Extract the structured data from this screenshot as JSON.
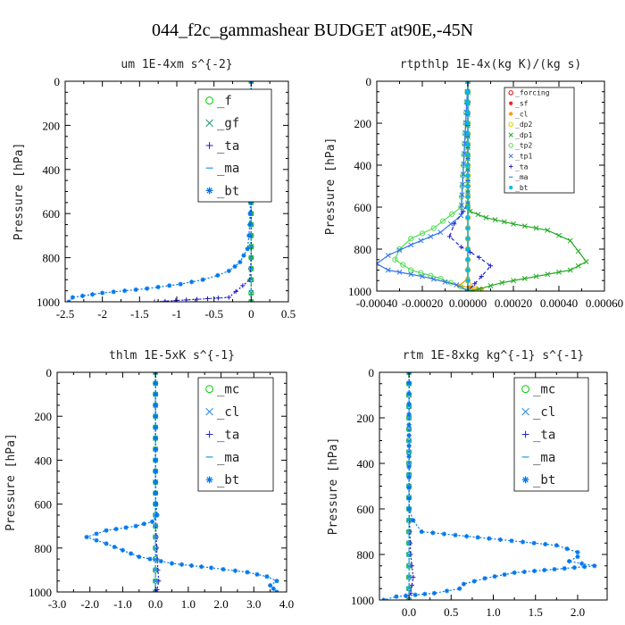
{
  "figure_title": "044_f2c_gammashear  BUDGET at90E,-45N",
  "chart_data": [
    {
      "type": "line",
      "title": "um  1E-4xm s^{-2}",
      "ylabel": "Pressure [hPa]",
      "xlabel": "",
      "xlim": [
        -2.5,
        0.5
      ],
      "ylim": [
        1000,
        0
      ],
      "xticks": [
        -2.5,
        -2.0,
        -1.5,
        -1.0,
        -0.5,
        0.0,
        0.5
      ],
      "xtick_labels": [
        "-2.5",
        "-2",
        "-1.5",
        "-1",
        "-0.5",
        "0",
        "0.5"
      ],
      "yticks": [
        0,
        200,
        400,
        600,
        800,
        1000
      ],
      "ytick_labels": [
        "0",
        "200",
        "400",
        "600",
        "800",
        "1000"
      ],
      "legend_position": "top-right",
      "series": [
        {
          "name": "_f",
          "color": "#00cc00",
          "marker": "o",
          "dash": "dotted",
          "x": [
            0,
            0,
            0,
            0,
            0,
            0,
            0,
            0,
            0,
            0,
            0,
            0
          ],
          "y": [
            0,
            100,
            200,
            300,
            400,
            500,
            600,
            700,
            800,
            900,
            960,
            1000
          ]
        },
        {
          "name": "_gf",
          "color": "#1a9a6a",
          "marker": "x",
          "dash": "dotted",
          "x": [
            0,
            0,
            0,
            0,
            0,
            0,
            0,
            0,
            0,
            0,
            0,
            0
          ],
          "y": [
            0,
            100,
            200,
            300,
            400,
            500,
            600,
            700,
            800,
            900,
            960,
            1000
          ]
        },
        {
          "name": "_ta",
          "color": "#1a1acc",
          "marker": "+",
          "dash": "dotted",
          "x": [
            0,
            0,
            0,
            0,
            0,
            0,
            -0.02,
            -0.3,
            -1.3
          ],
          "y": [
            0,
            200,
            400,
            600,
            700,
            800,
            900,
            980,
            1000
          ]
        },
        {
          "name": "_ma",
          "color": "#2299dd",
          "marker": "-",
          "dash": "dashed",
          "x": [
            0,
            0,
            0,
            0,
            0,
            0
          ],
          "y": [
            0,
            200,
            400,
            600,
            800,
            1000
          ]
        },
        {
          "name": "_bt",
          "color": "#0077ee",
          "marker": "*",
          "dash": "dotted",
          "x": [
            0,
            -0.01,
            -0.02,
            -0.03,
            -0.05,
            -0.1,
            -0.15,
            -0.22,
            -0.3,
            -0.45,
            -0.65,
            -0.95,
            -1.4,
            -2.0,
            -2.4,
            -2.45
          ],
          "y": [
            0,
            550,
            650,
            700,
            760,
            790,
            820,
            840,
            860,
            880,
            900,
            920,
            940,
            960,
            980,
            1000
          ]
        }
      ]
    },
    {
      "type": "line",
      "title": "rtpthlp  1E-4x(kg K)/(kg s)",
      "ylabel": "Pressure [hPa]",
      "xlabel": "",
      "xlim": [
        -0.0004,
        0.0006
      ],
      "ylim": [
        1000,
        0
      ],
      "xticks": [
        -0.0004,
        -0.0002,
        0.0,
        0.0002,
        0.0004,
        0.0006
      ],
      "xtick_labels": [
        "-0.00040",
        "-0.00020",
        "0.00000",
        "0.00020",
        "0.00040",
        "0.00060"
      ],
      "yticks": [
        0,
        200,
        400,
        600,
        800,
        1000
      ],
      "ytick_labels": [
        "0",
        "200",
        "400",
        "600",
        "800",
        "1000"
      ],
      "legend_position": "top-right",
      "series": [
        {
          "name": "_forcing",
          "color": "#dd0000",
          "marker": "o",
          "dash": "solid",
          "x": [
            0,
            0,
            0,
            0,
            0,
            0,
            0,
            0,
            0,
            0,
            0
          ],
          "y": [
            0,
            100,
            200,
            300,
            400,
            500,
            600,
            700,
            800,
            900,
            1000
          ]
        },
        {
          "name": "_sf",
          "color": "#ee2222",
          "marker": "*",
          "dash": "solid",
          "x": [
            0,
            0,
            0,
            0,
            0,
            0,
            0,
            0,
            0,
            0,
            0
          ],
          "y": [
            0,
            100,
            200,
            300,
            400,
            500,
            600,
            700,
            800,
            900,
            1000
          ]
        },
        {
          "name": "_cl",
          "color": "#ff9900",
          "marker": "*",
          "dash": "solid",
          "x": [
            0,
            0,
            0,
            0,
            -4e-05,
            6e-05,
            0
          ],
          "y": [
            0,
            400,
            800,
            940,
            975,
            990,
            1000
          ]
        },
        {
          "name": "_dp2",
          "color": "#ddcc00",
          "marker": "o",
          "dash": "solid",
          "x": [
            0,
            0,
            0,
            3e-05,
            0
          ],
          "y": [
            0,
            700,
            950,
            985,
            1000
          ]
        },
        {
          "name": "_dp1",
          "color": "#22aa22",
          "marker": "x",
          "dash": "solid",
          "x": [
            0,
            0,
            1e-05,
            8e-05,
            0.0002,
            0.00035,
            0.00045,
            0.00052,
            0.00045,
            0.0003,
            0.00015,
            5e-05,
            0
          ],
          "y": [
            0,
            580,
            620,
            650,
            680,
            710,
            760,
            860,
            900,
            930,
            960,
            990,
            1000
          ]
        },
        {
          "name": "_tp2",
          "color": "#55dd55",
          "marker": "o",
          "dash": "solid",
          "x": [
            0,
            -3e-05,
            -0.00015,
            -0.00025,
            -0.0003,
            -0.00032,
            -0.00025,
            -0.00012,
            -3e-05,
            0
          ],
          "y": [
            0,
            600,
            700,
            750,
            800,
            850,
            900,
            940,
            980,
            1000
          ]
        },
        {
          "name": "_tp1",
          "color": "#3377ee",
          "marker": "x",
          "dash": "solid",
          "x": [
            0,
            -3e-05,
            -0.00012,
            -0.00025,
            -0.00035,
            -0.0004,
            -0.00035,
            -0.0002,
            -5e-05,
            0
          ],
          "y": [
            0,
            640,
            720,
            780,
            830,
            870,
            900,
            930,
            970,
            1000
          ]
        },
        {
          "name": "_ta",
          "color": "#2222cc",
          "marker": "+",
          "dash": "dashed",
          "x": [
            0,
            0,
            -2e-05,
            -6e-05,
            -8e-05,
            -3e-05,
            5e-05,
            0.0001,
            6e-05,
            0
          ],
          "y": [
            0,
            580,
            620,
            680,
            740,
            790,
            840,
            880,
            930,
            1000
          ]
        },
        {
          "name": "_ma",
          "color": "#2299dd",
          "marker": "-",
          "dash": "solid",
          "x": [
            0,
            0,
            0
          ],
          "y": [
            0,
            500,
            1000
          ]
        },
        {
          "name": "_bt",
          "color": "#00bbee",
          "marker": "*",
          "dash": "solid",
          "x": [
            0,
            0,
            0
          ],
          "y": [
            0,
            500,
            1000
          ]
        }
      ]
    },
    {
      "type": "line",
      "title": "thlm  1E-5xK s^{-1}",
      "ylabel": "Pressure [hPa]",
      "xlabel": "",
      "xlim": [
        -3.0,
        4.0
      ],
      "ylim": [
        1000,
        0
      ],
      "xticks": [
        -3,
        -2,
        -1,
        0,
        1,
        2,
        3,
        4
      ],
      "xtick_labels": [
        "-3.0",
        "-2.0",
        "-1.0",
        "0.0",
        "1.0",
        "2.0",
        "3.0",
        "4.0"
      ],
      "yticks": [
        0,
        200,
        400,
        600,
        800,
        1000
      ],
      "ytick_labels": [
        "0",
        "200",
        "400",
        "600",
        "800",
        "1000"
      ],
      "legend_position": "top-right",
      "series": [
        {
          "name": "_mc",
          "color": "#00cc00",
          "marker": "o",
          "dash": "dotted",
          "x": [
            0,
            0,
            0,
            0,
            0,
            0,
            0,
            0,
            0,
            0,
            0
          ],
          "y": [
            0,
            100,
            200,
            300,
            400,
            500,
            600,
            700,
            800,
            900,
            1000
          ]
        },
        {
          "name": "_cl",
          "color": "#2288dd",
          "marker": "x",
          "dash": "dotted",
          "x": [
            0,
            0,
            0,
            0,
            0,
            0,
            0,
            0,
            0,
            0,
            0
          ],
          "y": [
            0,
            100,
            200,
            300,
            400,
            500,
            600,
            700,
            800,
            900,
            1000
          ]
        },
        {
          "name": "_ta",
          "color": "#2222cc",
          "marker": "+",
          "dash": "dotted",
          "x": [
            0,
            0,
            0.01,
            0.05,
            0.1,
            0.05,
            0
          ],
          "y": [
            0,
            400,
            700,
            850,
            950,
            990,
            1000
          ]
        },
        {
          "name": "_ma",
          "color": "#2299dd",
          "marker": "-",
          "dash": "dashed",
          "x": [
            0,
            0,
            0,
            0,
            0,
            0
          ],
          "y": [
            0,
            200,
            400,
            600,
            800,
            1000
          ]
        },
        {
          "name": "_bt",
          "color": "#0077ee",
          "marker": "*",
          "dash": "dotted",
          "x": [
            0,
            0,
            0.02,
            0.05,
            -0.1,
            -0.6,
            -1.5,
            -2.1,
            -1.5,
            -1.0,
            -0.5,
            0.5,
            1.7,
            2.8,
            3.4,
            3.7,
            3.5,
            3.6,
            3.7
          ],
          "y": [
            0,
            550,
            600,
            650,
            680,
            700,
            720,
            750,
            780,
            810,
            840,
            870,
            890,
            910,
            930,
            950,
            970,
            985,
            1000
          ]
        }
      ]
    },
    {
      "type": "line",
      "title": "rtm  1E-8xkg kg^{-1} s^{-1}",
      "ylabel": "Pressure [hPa]",
      "xlabel": "",
      "xlim": [
        -0.35,
        2.35
      ],
      "ylim": [
        1000,
        0
      ],
      "xticks": [
        0.0,
        0.5,
        1.0,
        1.5,
        2.0
      ],
      "xtick_labels": [
        "0.0",
        "0.5",
        "1.0",
        "1.5",
        "2.0"
      ],
      "yticks": [
        0,
        200,
        400,
        600,
        800,
        1000
      ],
      "ytick_labels": [
        "0",
        "200",
        "400",
        "600",
        "800",
        "1000"
      ],
      "legend_position": "top-right",
      "series": [
        {
          "name": "_mc",
          "color": "#00cc00",
          "marker": "o",
          "dash": "dotted",
          "x": [
            0,
            0,
            0,
            0,
            0,
            0,
            0,
            0,
            0,
            0,
            0
          ],
          "y": [
            0,
            100,
            200,
            300,
            400,
            500,
            600,
            700,
            800,
            900,
            1000
          ]
        },
        {
          "name": "_cl",
          "color": "#2288dd",
          "marker": "x",
          "dash": "dotted",
          "x": [
            0,
            0,
            0,
            0,
            0,
            0,
            0,
            0,
            0,
            0,
            0
          ],
          "y": [
            0,
            100,
            200,
            300,
            400,
            500,
            600,
            700,
            800,
            900,
            1000
          ]
        },
        {
          "name": "_ta",
          "color": "#2222cc",
          "marker": "+",
          "dash": "dotted",
          "x": [
            0,
            0,
            0.02,
            0.05,
            0.02,
            0
          ],
          "y": [
            0,
            600,
            800,
            900,
            970,
            1000
          ]
        },
        {
          "name": "_ma",
          "color": "#2299dd",
          "marker": "-",
          "dash": "dashed",
          "x": [
            0,
            0,
            0,
            0,
            0,
            0
          ],
          "y": [
            0,
            200,
            400,
            600,
            800,
            1000
          ]
        },
        {
          "name": "_bt",
          "color": "#0077ee",
          "marker": "*",
          "dash": "dotted",
          "x": [
            0,
            0,
            0.05,
            0.15,
            0.95,
            1.75,
            2.0,
            2.0,
            1.9,
            2.2,
            1.25,
            0.9,
            0.65,
            0.6,
            0.3,
            -0.15,
            -0.3
          ],
          "y": [
            0,
            600,
            650,
            700,
            730,
            760,
            790,
            810,
            830,
            850,
            880,
            905,
            930,
            950,
            970,
            985,
            1000
          ]
        }
      ]
    }
  ]
}
